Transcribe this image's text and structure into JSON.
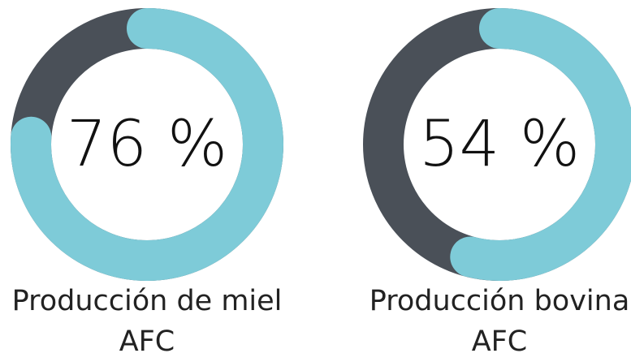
{
  "chart_data": [
    {
      "type": "donut",
      "title": "Producción de miel AFC",
      "values": [
        76
      ],
      "value_labels": [
        "76 %"
      ],
      "ylim": [
        0,
        100
      ],
      "color": "#7ecbd8",
      "track_color": "#4a5058"
    },
    {
      "type": "donut",
      "title": "Producción bovina AFC",
      "values": [
        54
      ],
      "value_labels": [
        "54 %"
      ],
      "ylim": [
        0,
        100
      ],
      "color": "#7ecbd8",
      "track_color": "#4a5058"
    }
  ]
}
